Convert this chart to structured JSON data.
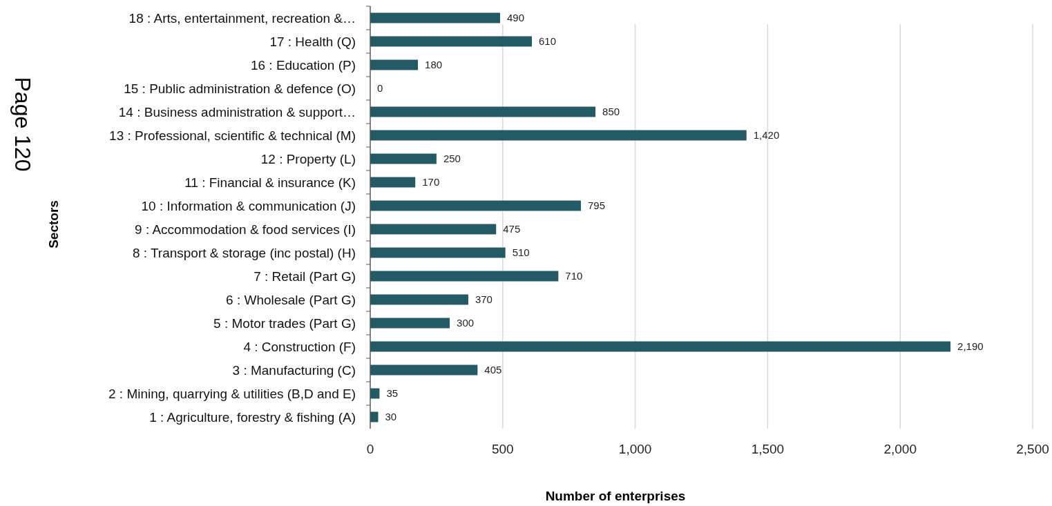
{
  "chart_data": {
    "type": "bar",
    "orientation": "horizontal",
    "xlabel": "Number of enterprises",
    "ylabel": "Sectors",
    "categories": [
      "18 : Arts, entertainment, recreation &…",
      "17 : Health (Q)",
      "16 : Education (P)",
      "15 : Public administration & defence (O)",
      "14 : Business administration & support…",
      "13 : Professional, scientific & technical (M)",
      "12 : Property (L)",
      "11 : Financial & insurance (K)",
      "10 : Information & communication (J)",
      "9 : Accommodation & food services (I)",
      "8 : Transport & storage (inc postal) (H)",
      "7 : Retail (Part G)",
      "6 : Wholesale (Part G)",
      "5 : Motor trades (Part G)",
      "4 : Construction (F)",
      "3 : Manufacturing (C)",
      "2 : Mining, quarrying & utilities (B,D and E)",
      "1 : Agriculture, forestry & fishing (A)"
    ],
    "values": [
      490,
      610,
      180,
      0,
      850,
      1420,
      250,
      170,
      795,
      475,
      510,
      710,
      370,
      300,
      2190,
      405,
      35,
      30
    ],
    "value_labels": [
      "490",
      "610",
      "180",
      "0",
      "850",
      "1,420",
      "250",
      "170",
      "795",
      "475",
      "510",
      "710",
      "370",
      "300",
      "2,190",
      "405",
      "35",
      "30"
    ],
    "color": "#245a66",
    "xlim": [
      0,
      2500
    ],
    "xticks": [
      0,
      500,
      {
        "value": 1000,
        "label": "1,000"
      },
      {
        "value": 1500,
        "label": "1,500"
      },
      {
        "value": 2000,
        "label": "2,000"
      },
      {
        "value": 2500,
        "label": "2,500"
      }
    ],
    "grid": "x",
    "annotations": [
      "Page 120"
    ]
  }
}
